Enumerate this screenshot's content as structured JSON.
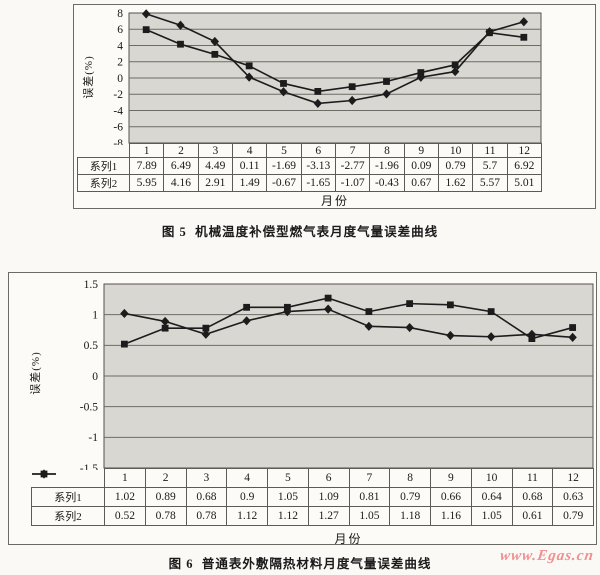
{
  "page": {
    "watermark": "www.Egas.cn",
    "watermark_color": "#f09090"
  },
  "chart_data": [
    {
      "type": "line",
      "title": "图 5  机械温度补偿型燃气表月度气量误差曲线",
      "caption_label": "图 5",
      "caption_text": "机械温度补偿型燃气表月度气量误差曲线",
      "xlabel": "月份",
      "ylabel": "误差(%)",
      "categories": [
        "1",
        "2",
        "3",
        "4",
        "5",
        "6",
        "7",
        "8",
        "9",
        "10",
        "11",
        "12"
      ],
      "series": [
        {
          "name": "系列1",
          "marker": "diamond",
          "values": [
            7.89,
            6.49,
            4.49,
            0.11,
            -1.69,
            -3.13,
            -2.77,
            -1.96,
            0.09,
            0.79,
            5.7,
            6.92
          ]
        },
        {
          "name": "系列2",
          "marker": "square",
          "values": [
            5.95,
            4.16,
            2.91,
            1.49,
            -0.67,
            -1.65,
            -1.07,
            -0.43,
            0.67,
            1.62,
            5.57,
            5.01
          ]
        }
      ],
      "ylim": [
        -8,
        8
      ],
      "ytick_step": 2,
      "yticks": [
        "8",
        "6",
        "4",
        "2",
        "0",
        "-2",
        "-4",
        "-6",
        "-8"
      ],
      "grid": "horizontal",
      "legend_in_table": false,
      "legend_position": "table-rows",
      "plot_bg": "#d9d7d2",
      "line_color": "#1c1c1c"
    },
    {
      "type": "line",
      "title": "图 6  普通表外敷隔热材料月度气量误差曲线",
      "caption_label": "图 6",
      "caption_text": "普通表外敷隔热材料月度气量误差曲线",
      "xlabel": "月份",
      "ylabel": "误差(%)",
      "categories": [
        "1",
        "2",
        "3",
        "4",
        "5",
        "6",
        "7",
        "8",
        "9",
        "10",
        "11",
        "12"
      ],
      "series": [
        {
          "name": "系列1",
          "marker": "diamond",
          "values": [
            1.02,
            0.89,
            0.68,
            0.9,
            1.05,
            1.09,
            0.81,
            0.79,
            0.66,
            0.64,
            0.68,
            0.63
          ]
        },
        {
          "name": "系列2",
          "marker": "square",
          "values": [
            0.52,
            0.78,
            0.78,
            1.12,
            1.12,
            1.27,
            1.05,
            1.18,
            1.16,
            1.05,
            0.61,
            0.79
          ]
        }
      ],
      "ylim": [
        -1.5,
        1.5
      ],
      "ytick_step": 0.5,
      "yticks": [
        "1.5",
        "1",
        "0.5",
        "0",
        "-0.5",
        "-1",
        "-1.5"
      ],
      "grid": "horizontal",
      "legend_in_table": true,
      "legend_position": "table-rows",
      "plot_bg": "#d9d7d2",
      "line_color": "#1c1c1c"
    }
  ]
}
